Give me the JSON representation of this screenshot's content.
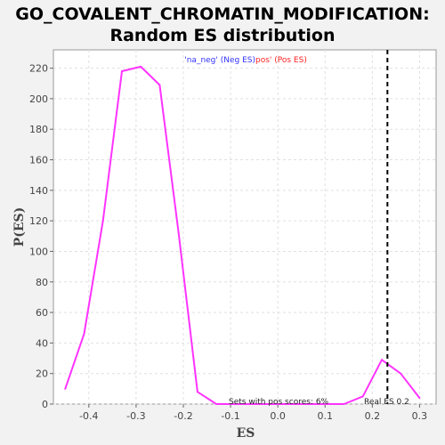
{
  "colors": {
    "background": "#f2f2f2",
    "plot_background": "#ffffff",
    "series": "#ff33ff",
    "grid": "#e0e0e0",
    "real_es_line": "#000000",
    "neg_legend": "#3333ff",
    "pos_legend": "#ff2222"
  },
  "chart_data": {
    "type": "line",
    "title": "GO_COVALENT_CHROMATIN_MODIFICATION: Random ES distribution",
    "title_lines": [
      "GO_COVALENT_CHROMATIN_MODIFICATION:",
      "Random ES distribution"
    ],
    "xlabel": "ES",
    "ylabel": "P(ES)",
    "xlim": [
      -0.475,
      0.335
    ],
    "ylim": [
      0,
      232
    ],
    "xticks": [
      -0.4,
      -0.3,
      -0.2,
      -0.1,
      0.0,
      0.1,
      0.2,
      0.3
    ],
    "xtick_labels": [
      "-0.4",
      "-0.3",
      "-0.2",
      "-0.1",
      "0.0",
      "0.1",
      "0.2",
      "0.3"
    ],
    "yticks": [
      0,
      20,
      40,
      60,
      80,
      100,
      120,
      140,
      160,
      180,
      200,
      220
    ],
    "ytick_labels": [
      "0",
      "20",
      "40",
      "60",
      "80",
      "100",
      "120",
      "140",
      "160",
      "180",
      "200",
      "220"
    ],
    "grid": true,
    "legend": {
      "placement": "top-center",
      "neg_label": "'na_neg' (Neg ES)",
      "pos_label": "pos' (Pos ES)"
    },
    "series": [
      {
        "x": [
          -0.45,
          -0.41,
          -0.37,
          -0.33,
          -0.29,
          -0.25,
          -0.21,
          -0.17,
          -0.13,
          -0.09,
          -0.05,
          -0.01,
          0.03,
          0.07,
          0.11,
          0.14,
          0.18,
          0.22,
          0.26,
          0.3
        ],
        "y": [
          10,
          46,
          120,
          218,
          221,
          209,
          112,
          8,
          0,
          0,
          0,
          0,
          0,
          0,
          0,
          0,
          5,
          29,
          20,
          4
        ]
      }
    ],
    "real_es": 0.232,
    "annotations": {
      "pos_scores": "Sets with pos scores: 6%",
      "real_es": "Real ES 0.2"
    }
  }
}
